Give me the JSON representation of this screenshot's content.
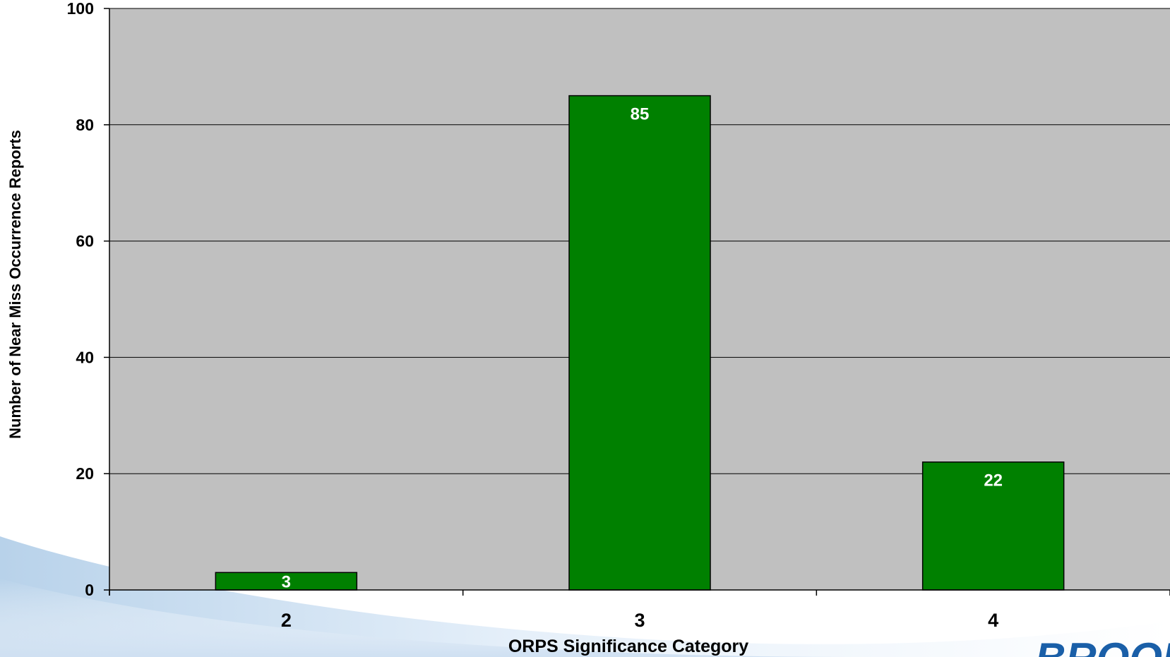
{
  "chart_data": {
    "type": "bar",
    "title": "",
    "xlabel": "ORPS Significance Category",
    "ylabel": "Number of Near Miss Occurrence Reports",
    "categories": [
      "2",
      "3",
      "4"
    ],
    "values": [
      3,
      85,
      22
    ],
    "data_labels": [
      "3",
      "85",
      "22"
    ],
    "ylim": [
      0,
      100
    ],
    "yticks": [
      0,
      20,
      40,
      60,
      80,
      100
    ],
    "ytick_labels": [
      "0",
      "20",
      "40",
      "60",
      "80",
      "100"
    ],
    "grid": true,
    "legend": "none"
  },
  "colors": {
    "bar_fill": "#008000",
    "bar_stroke": "#000000",
    "plot_background": "#c0c0c0",
    "gridline": "#000000",
    "data_label": "#ffffff",
    "page_background": "#ffffff",
    "swoosh_light": "#e6f0fa",
    "swoosh_mid": "#b8d2ea",
    "logo_blue": "#1a5fa8"
  },
  "logo": {
    "icon": "corner-logo-partial",
    "text": "BROOKH"
  }
}
